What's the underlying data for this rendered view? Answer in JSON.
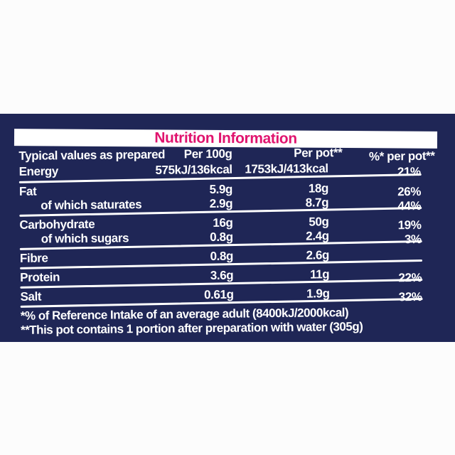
{
  "colors": {
    "panel_navy": "#1f2656",
    "title_pink": "#e0146e",
    "text_white": "#ffffff",
    "page_background": "#fcfcfc"
  },
  "title": "Nutrition Information",
  "table": {
    "header": {
      "typical_values": "Typical values as prepared",
      "per_100g": "Per 100g",
      "per_pot": "Per pot**",
      "pct_per_pot": "%* per pot**"
    },
    "rows": [
      {
        "label": "Energy",
        "per_100g": "575kJ/136kcal",
        "per_pot": "1753kJ/413kcal",
        "pct_per_pot": "21%"
      },
      {
        "label": "Fat",
        "per_100g": "5.9g",
        "per_pot": "18g",
        "pct_per_pot": "26%"
      },
      {
        "label": "of which saturates",
        "per_100g": "2.9g",
        "per_pot": "8.7g",
        "pct_per_pot": "44%"
      },
      {
        "label": "Carbohydrate",
        "per_100g": "16g",
        "per_pot": "50g",
        "pct_per_pot": "19%"
      },
      {
        "label": "of which sugars",
        "per_100g": "0.8g",
        "per_pot": "2.4g",
        "pct_per_pot": "3%"
      },
      {
        "label": "Fibre",
        "per_100g": "0.8g",
        "per_pot": "2.6g",
        "pct_per_pot": ""
      },
      {
        "label": "Protein",
        "per_100g": "3.6g",
        "per_pot": "11g",
        "pct_per_pot": "22%"
      },
      {
        "label": "Salt",
        "per_100g": "0.61g",
        "per_pot": "1.9g",
        "pct_per_pot": "32%"
      }
    ]
  },
  "footnotes": {
    "reference_intake": "*% of Reference Intake of an average adult (8400kJ/2000kcal)",
    "portion_note": "**This pot contains 1 portion after preparation with water (305g)"
  }
}
